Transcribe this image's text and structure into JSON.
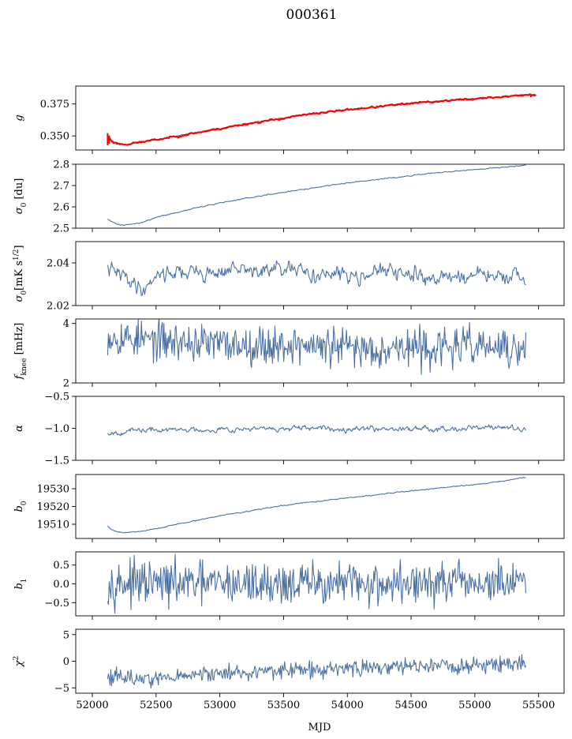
{
  "figure": {
    "title": "000361",
    "xlabel": "MJD",
    "background": "#ffffff",
    "line_color": "#4c72a4",
    "fit_color": "#ff0000"
  },
  "chart_data": [
    {
      "type": "line",
      "ylabel": "g",
      "ylabel_sub": "",
      "ylabel_sup": "",
      "ylabel_suffix": "",
      "ylim": [
        0.339,
        0.389
      ],
      "yticks": [
        0.35,
        0.375
      ],
      "ytick_labels": [
        "0.350",
        "0.375"
      ],
      "xlim": [
        51870,
        55700
      ],
      "xticks": [
        52000,
        52500,
        53000,
        53500,
        54000,
        54500,
        55000,
        55500
      ],
      "series": [
        {
          "kind": "data",
          "x": [
            52130,
            52150,
            52175,
            52200,
            52225,
            52250,
            52300,
            52400,
            52500,
            52600,
            52800,
            53000,
            53200,
            53400,
            53600,
            53800,
            54000,
            54200,
            54400,
            54600,
            54800,
            55000,
            55200,
            55400
          ],
          "y": [
            0.351,
            0.347,
            0.345,
            0.3445,
            0.3437,
            0.3435,
            0.344,
            0.3455,
            0.347,
            0.3487,
            0.3522,
            0.3557,
            0.3593,
            0.3622,
            0.3655,
            0.3682,
            0.3705,
            0.3724,
            0.3745,
            0.3762,
            0.3778,
            0.379,
            0.3805,
            0.382
          ],
          "noise": 0.0006,
          "seed": 11
        },
        {
          "kind": "fit",
          "x": [
            52120,
            52150,
            52175,
            52200,
            52225,
            52250,
            52300,
            52400,
            52500,
            52600,
            52800,
            53000,
            53200,
            53400,
            53600,
            53800,
            54000,
            54200,
            54400,
            54600,
            54800,
            55000,
            55200,
            55400,
            55480
          ],
          "y": [
            0.349,
            0.346,
            0.3447,
            0.3441,
            0.3436,
            0.3434,
            0.344,
            0.3455,
            0.347,
            0.3487,
            0.3522,
            0.3557,
            0.3593,
            0.3622,
            0.3655,
            0.3682,
            0.3705,
            0.3724,
            0.3745,
            0.3762,
            0.3778,
            0.379,
            0.3805,
            0.382,
            0.3822
          ],
          "noise": 0.0007,
          "seed": 23
        }
      ]
    },
    {
      "type": "line",
      "ylabel": "σ",
      "ylabel_sub": "0",
      "ylabel_sup": "",
      "ylabel_suffix": " [du]",
      "ylim": [
        2.5,
        2.8
      ],
      "yticks": [
        2.5,
        2.6,
        2.7,
        2.8
      ],
      "ytick_labels": [
        "2.5",
        "2.6",
        "2.7",
        "2.8"
      ],
      "xlim": [
        51870,
        55700
      ],
      "xticks": [
        52000,
        52500,
        53000,
        53500,
        54000,
        54500,
        55000,
        55500
      ],
      "series": [
        {
          "kind": "data",
          "x": [
            52120,
            52150,
            52200,
            52250,
            52300,
            52350,
            52400,
            52500,
            52600,
            52800,
            53000,
            53200,
            53400,
            53600,
            53800,
            54000,
            54200,
            54400,
            54600,
            54800,
            55000,
            55200,
            55400
          ],
          "y": [
            2.545,
            2.53,
            2.518,
            2.514,
            2.517,
            2.522,
            2.53,
            2.55,
            2.565,
            2.593,
            2.618,
            2.64,
            2.66,
            2.677,
            2.695,
            2.712,
            2.727,
            2.74,
            2.753,
            2.765,
            2.775,
            2.785,
            2.795
          ],
          "noise": 0.0025,
          "seed": 31
        }
      ]
    },
    {
      "type": "line",
      "ylabel": "σ",
      "ylabel_sub": "0",
      "ylabel_sup": "1/2",
      "ylabel_suffix": "[mK s",
      "ylim": [
        2.02,
        2.05
      ],
      "yticks": [
        2.02,
        2.04
      ],
      "ytick_labels": [
        "2.02",
        "2.04"
      ],
      "xlim": [
        51870,
        55700
      ],
      "xticks": [
        52000,
        52500,
        53000,
        53500,
        54000,
        54500,
        55000,
        55500
      ],
      "series": [
        {
          "kind": "data",
          "x": [
            52120,
            52200,
            52300,
            52400,
            52500,
            52700,
            52900,
            53100,
            53300,
            53500,
            53700,
            53900,
            54100,
            54300,
            54500,
            54700,
            54900,
            55100,
            55300,
            55400
          ],
          "y": [
            2.037,
            2.035,
            2.032,
            2.027,
            2.035,
            2.036,
            2.035,
            2.037,
            2.036,
            2.037,
            2.035,
            2.034,
            2.035,
            2.036,
            2.034,
            2.033,
            2.034,
            2.034,
            2.033,
            2.03
          ],
          "noise": 0.0035,
          "seed": 41
        }
      ]
    },
    {
      "type": "line",
      "ylabel": "f",
      "ylabel_sub": "knee",
      "ylabel_sup": "",
      "ylabel_suffix": " [mHz]",
      "ylim": [
        2,
        4.15
      ],
      "yticks": [
        2,
        4
      ],
      "ytick_labels": [
        "2",
        "4"
      ],
      "xlim": [
        51870,
        55700
      ],
      "xticks": [
        52000,
        52500,
        53000,
        53500,
        54000,
        54500,
        55000,
        55500
      ],
      "series": [
        {
          "kind": "data",
          "x": [
            52120,
            52200,
            52400,
            52600,
            52800,
            53000,
            53200,
            53400,
            53600,
            53800,
            54000,
            54200,
            54400,
            54600,
            54800,
            55000,
            55200,
            55400
          ],
          "y": [
            3.6,
            3.55,
            3.45,
            3.4,
            3.35,
            3.3,
            3.3,
            3.25,
            3.3,
            3.2,
            3.2,
            3.15,
            3.2,
            3.15,
            3.2,
            3.25,
            3.15,
            3.0
          ],
          "noise": 0.32,
          "seed": 53
        }
      ]
    },
    {
      "type": "line",
      "ylabel": "α",
      "ylabel_sub": "",
      "ylabel_sup": "",
      "ylabel_suffix": "",
      "ylim": [
        -1.5,
        -0.5
      ],
      "yticks": [
        -1.5,
        -1.0,
        -0.5
      ],
      "ytick_labels": [
        "−1.5",
        "−1.0",
        "−0.5"
      ],
      "xlim": [
        51870,
        55700
      ],
      "xticks": [
        52000,
        52500,
        53000,
        53500,
        54000,
        54500,
        55000,
        55500
      ],
      "series": [
        {
          "kind": "data",
          "x": [
            52120,
            52400,
            52800,
            53200,
            53600,
            54000,
            54400,
            54800,
            55200,
            55400
          ],
          "y": [
            -1.07,
            -1.03,
            -1.02,
            -1.01,
            -1.01,
            -1.0,
            -1.0,
            -1.0,
            -0.98,
            -1.03
          ],
          "noise": 0.04,
          "seed": 67
        }
      ]
    },
    {
      "type": "line",
      "ylabel": "b",
      "ylabel_sub": "0",
      "ylabel_sup": "",
      "ylabel_suffix": "",
      "ylim": [
        19502,
        19538
      ],
      "yticks": [
        19510,
        19520,
        19530
      ],
      "ytick_labels": [
        "19510",
        "19520",
        "19530"
      ],
      "xlim": [
        51870,
        55700
      ],
      "xticks": [
        52000,
        52500,
        53000,
        53500,
        54000,
        54500,
        55000,
        55500
      ],
      "series": [
        {
          "kind": "data",
          "x": [
            52120,
            52150,
            52200,
            52250,
            52300,
            52400,
            52500,
            52600,
            52800,
            53000,
            53200,
            53400,
            53600,
            53800,
            54000,
            54200,
            54400,
            54600,
            54800,
            55000,
            55200,
            55400
          ],
          "y": [
            19509,
            19507,
            19505.8,
            19505.4,
            19505.5,
            19506.3,
            19507.5,
            19509,
            19512,
            19514.8,
            19517,
            19519.5,
            19521.5,
            19523.2,
            19524.8,
            19526.3,
            19528,
            19529.5,
            19531,
            19532.3,
            19534,
            19536.5
          ],
          "noise": 0.3,
          "seed": 79
        }
      ]
    },
    {
      "type": "line",
      "ylabel": "b",
      "ylabel_sub": "1",
      "ylabel_sup": "",
      "ylabel_suffix": "",
      "ylim": [
        -0.85,
        0.85
      ],
      "yticks": [
        -0.5,
        0.0,
        0.5
      ],
      "ytick_labels": [
        "−0.5",
        "0.0",
        "0.5"
      ],
      "xlim": [
        51870,
        55700
      ],
      "xticks": [
        52000,
        52500,
        53000,
        53500,
        54000,
        54500,
        55000,
        55500
      ],
      "series": [
        {
          "kind": "data",
          "x": [
            52120,
            52400,
            52800,
            53200,
            53600,
            54000,
            54400,
            54800,
            55200,
            55400
          ],
          "y": [
            0.05,
            0.0,
            0.0,
            0.0,
            0.0,
            0.0,
            0.0,
            0.0,
            0.0,
            0.0
          ],
          "noise": 0.28,
          "seed": 97
        }
      ]
    },
    {
      "type": "line",
      "ylabel": "χ",
      "ylabel_sub": "",
      "ylabel_sup": "2",
      "ylabel_suffix": "",
      "ylim": [
        -6,
        6
      ],
      "yticks": [
        -5,
        0,
        5
      ],
      "ytick_labels": [
        "−5",
        "0",
        "5"
      ],
      "xlim": [
        51870,
        55700
      ],
      "xticks": [
        52000,
        52500,
        53000,
        53500,
        54000,
        54500,
        55000,
        55500
      ],
      "xtick_labels": [
        "52000",
        "52500",
        "53000",
        "53500",
        "54000",
        "54500",
        "55000",
        "55500"
      ],
      "series": [
        {
          "kind": "data",
          "x": [
            52120,
            52300,
            52500,
            52800,
            53100,
            53400,
            53700,
            54000,
            54300,
            54600,
            54900,
            55200,
            55400
          ],
          "y": [
            -2.6,
            -3.2,
            -3.3,
            -2.6,
            -2.1,
            -1.9,
            -1.6,
            -1.4,
            -1.1,
            -0.9,
            -0.8,
            -0.6,
            -0.4
          ],
          "noise": 0.75,
          "seed": 113
        }
      ]
    }
  ]
}
